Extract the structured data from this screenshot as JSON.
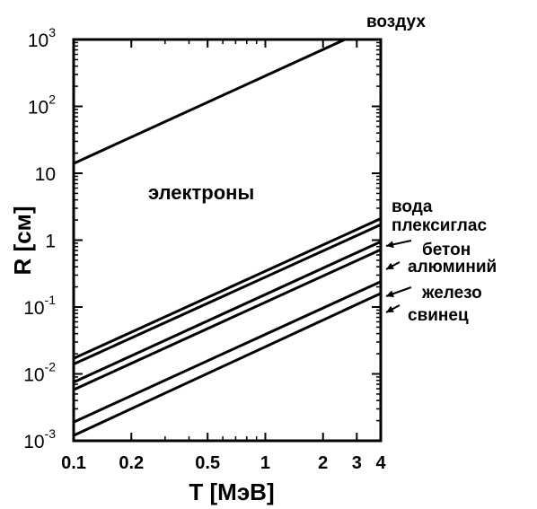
{
  "chart_data": {
    "type": "line",
    "x_scale": "log",
    "y_scale": "log",
    "xlim": [
      0.1,
      4
    ],
    "ylim": [
      0.001,
      1000
    ],
    "xlabel": "T [МэВ]",
    "ylabel": "R  [см]",
    "annotation": "электроны",
    "x_ticks": [
      {
        "value": 0.1,
        "label": "0.1"
      },
      {
        "value": 0.2,
        "label": "0.2"
      },
      {
        "value": 0.5,
        "label": "0.5"
      },
      {
        "value": 1,
        "label": "1"
      },
      {
        "value": 2,
        "label": "2"
      },
      {
        "value": 3,
        "label": "3"
      },
      {
        "value": 4,
        "label": "4"
      }
    ],
    "y_ticks": [
      {
        "value": 0.001,
        "base": "10",
        "exp": "-3"
      },
      {
        "value": 0.01,
        "base": "10",
        "exp": "-2"
      },
      {
        "value": 0.1,
        "base": "10",
        "exp": "-1"
      },
      {
        "value": 1,
        "base": "1",
        "exp": ""
      },
      {
        "value": 10,
        "base": "10",
        "exp": ""
      },
      {
        "value": 100,
        "base": "10",
        "exp": "2"
      },
      {
        "value": 1000,
        "base": "10",
        "exp": "3"
      }
    ],
    "series": [
      {
        "name": "воздух",
        "x": [
          0.1,
          2.6
        ],
        "y": [
          14,
          1000
        ]
      },
      {
        "name": "вода",
        "x": [
          0.1,
          4
        ],
        "y": [
          0.017,
          2.1
        ]
      },
      {
        "name": "плексиглас",
        "x": [
          0.1,
          4
        ],
        "y": [
          0.014,
          1.7
        ]
      },
      {
        "name": "бетон",
        "x": [
          0.1,
          4
        ],
        "y": [
          0.0075,
          0.95
        ]
      },
      {
        "name": "алюминий",
        "x": [
          0.1,
          4
        ],
        "y": [
          0.0058,
          0.72
        ]
      },
      {
        "name": "железо",
        "x": [
          0.1,
          4
        ],
        "y": [
          0.0019,
          0.24
        ]
      },
      {
        "name": "свинец",
        "x": [
          0.1,
          4
        ],
        "y": [
          0.0012,
          0.16
        ]
      }
    ]
  }
}
